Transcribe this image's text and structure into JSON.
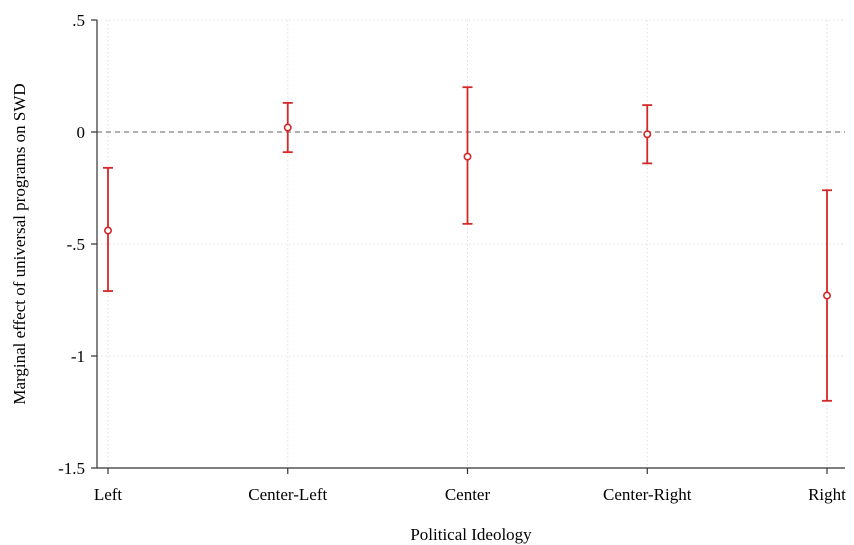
{
  "chart_data": {
    "type": "scatter",
    "title": "",
    "xlabel": "Political Ideology",
    "ylabel": "Marginal effect of universal programs on SWD",
    "categories": [
      "Left",
      "Center-Left",
      "Center",
      "Center-Right",
      "Right"
    ],
    "series": [
      {
        "values": [
          -0.44,
          0.02,
          -0.11,
          -0.01,
          -0.73
        ],
        "ci_lower": [
          -0.71,
          -0.09,
          -0.41,
          -0.14,
          -1.2
        ],
        "ci_upper": [
          -0.16,
          0.13,
          0.2,
          0.12,
          -0.26
        ]
      }
    ],
    "ylim": [
      -1.5,
      0.5
    ],
    "yticks": [
      0.5,
      0,
      -0.5,
      -1,
      -1.5
    ],
    "ytick_labels": [
      ".5",
      "0",
      "-.5",
      "-1",
      "-1.5"
    ],
    "reference_line": 0,
    "grid": true,
    "colors": {
      "marker": "#d62728",
      "grid": "#e0e0e0",
      "reference": "#808080",
      "axis": "#333333"
    }
  }
}
